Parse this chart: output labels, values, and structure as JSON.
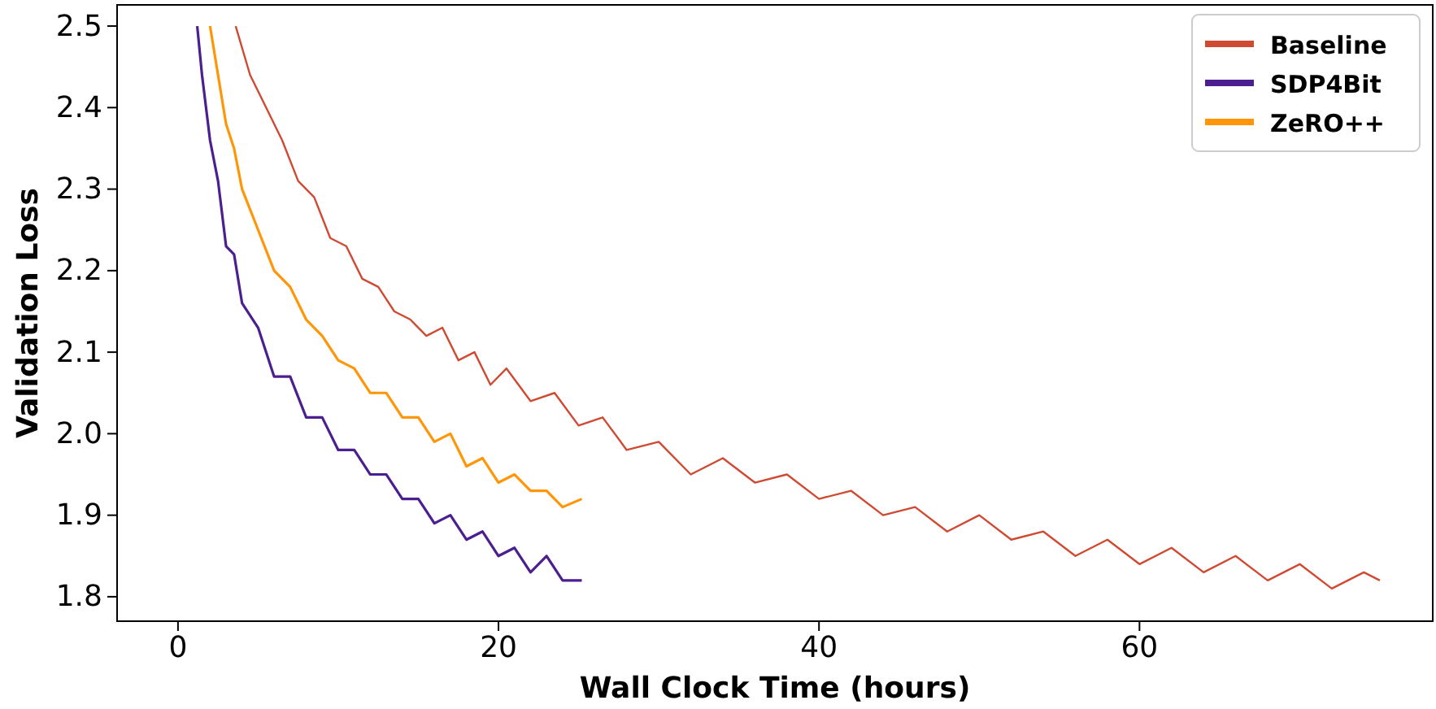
{
  "chart_data": {
    "type": "line",
    "xlabel": "Wall Clock Time (hours)",
    "ylabel": "Validation Loss",
    "xlim": [
      -3.8,
      78.3
    ],
    "xticks": [
      0,
      20,
      40,
      60
    ],
    "ylim": [
      1.77,
      2.526
    ],
    "yticks": [
      1.8,
      1.9,
      {
        "value": 2,
        "label": "2.0"
      },
      2.1,
      2.2,
      2.3,
      2.4,
      2.5
    ],
    "grid": false,
    "legend": "top right",
    "marker": "none",
    "line_style": "solid",
    "series": [
      {
        "name": "Baseline",
        "color": "#cf4a33",
        "x": [
          3.6,
          4.5,
          5.5,
          6.5,
          7.5,
          8.5,
          9.5,
          10.5,
          11.5,
          12.5,
          13.5,
          14.5,
          15.5,
          16.5,
          17.5,
          18.5,
          19.5,
          20.5,
          22,
          23.5,
          25,
          26.5,
          28,
          30,
          32,
          34,
          36,
          38,
          40,
          42,
          44,
          46,
          48,
          50,
          52,
          54,
          56,
          58,
          60,
          62,
          64,
          66,
          68,
          70,
          72,
          74,
          75
        ],
        "values": [
          2.5,
          2.44,
          2.4,
          2.36,
          2.31,
          2.29,
          2.24,
          2.23,
          2.19,
          2.18,
          2.15,
          2.14,
          2.12,
          2.13,
          2.09,
          2.1,
          2.06,
          2.08,
          2.04,
          2.05,
          2.01,
          2.02,
          1.98,
          1.99,
          1.95,
          1.97,
          1.94,
          1.95,
          1.92,
          1.93,
          1.9,
          1.91,
          1.88,
          1.9,
          1.87,
          1.88,
          1.85,
          1.87,
          1.84,
          1.86,
          1.83,
          1.85,
          1.82,
          1.84,
          1.81,
          1.83,
          1.82
        ]
      },
      {
        "name": "SDP4Bit",
        "color": "#4b1f8f",
        "x": [
          1.2,
          1.5,
          2,
          2.5,
          3,
          3.5,
          4,
          5,
          6,
          7,
          8,
          9,
          10,
          11,
          12,
          13,
          14,
          15,
          16,
          17,
          18,
          19,
          20,
          21,
          22,
          23,
          24,
          25.2
        ],
        "values": [
          2.5,
          2.44,
          2.36,
          2.31,
          2.23,
          2.22,
          2.16,
          2.13,
          2.07,
          2.07,
          2.02,
          2.02,
          1.98,
          1.98,
          1.95,
          1.95,
          1.92,
          1.92,
          1.89,
          1.9,
          1.87,
          1.88,
          1.85,
          1.86,
          1.83,
          1.85,
          1.82,
          1.82
        ]
      },
      {
        "name": "ZeRO++",
        "color": "#ff9608",
        "x": [
          2,
          2.5,
          3,
          3.5,
          4,
          5,
          6,
          7,
          8,
          9,
          10,
          11,
          12,
          13,
          14,
          15,
          16,
          17,
          18,
          19,
          20,
          21,
          22,
          23,
          24,
          25.2
        ],
        "values": [
          2.5,
          2.44,
          2.38,
          2.35,
          2.3,
          2.25,
          2.2,
          2.18,
          2.14,
          2.12,
          2.09,
          2.08,
          2.05,
          2.05,
          2.02,
          2.02,
          1.99,
          2.0,
          1.96,
          1.97,
          1.94,
          1.95,
          1.93,
          1.93,
          1.91,
          1.92
        ]
      }
    ]
  }
}
